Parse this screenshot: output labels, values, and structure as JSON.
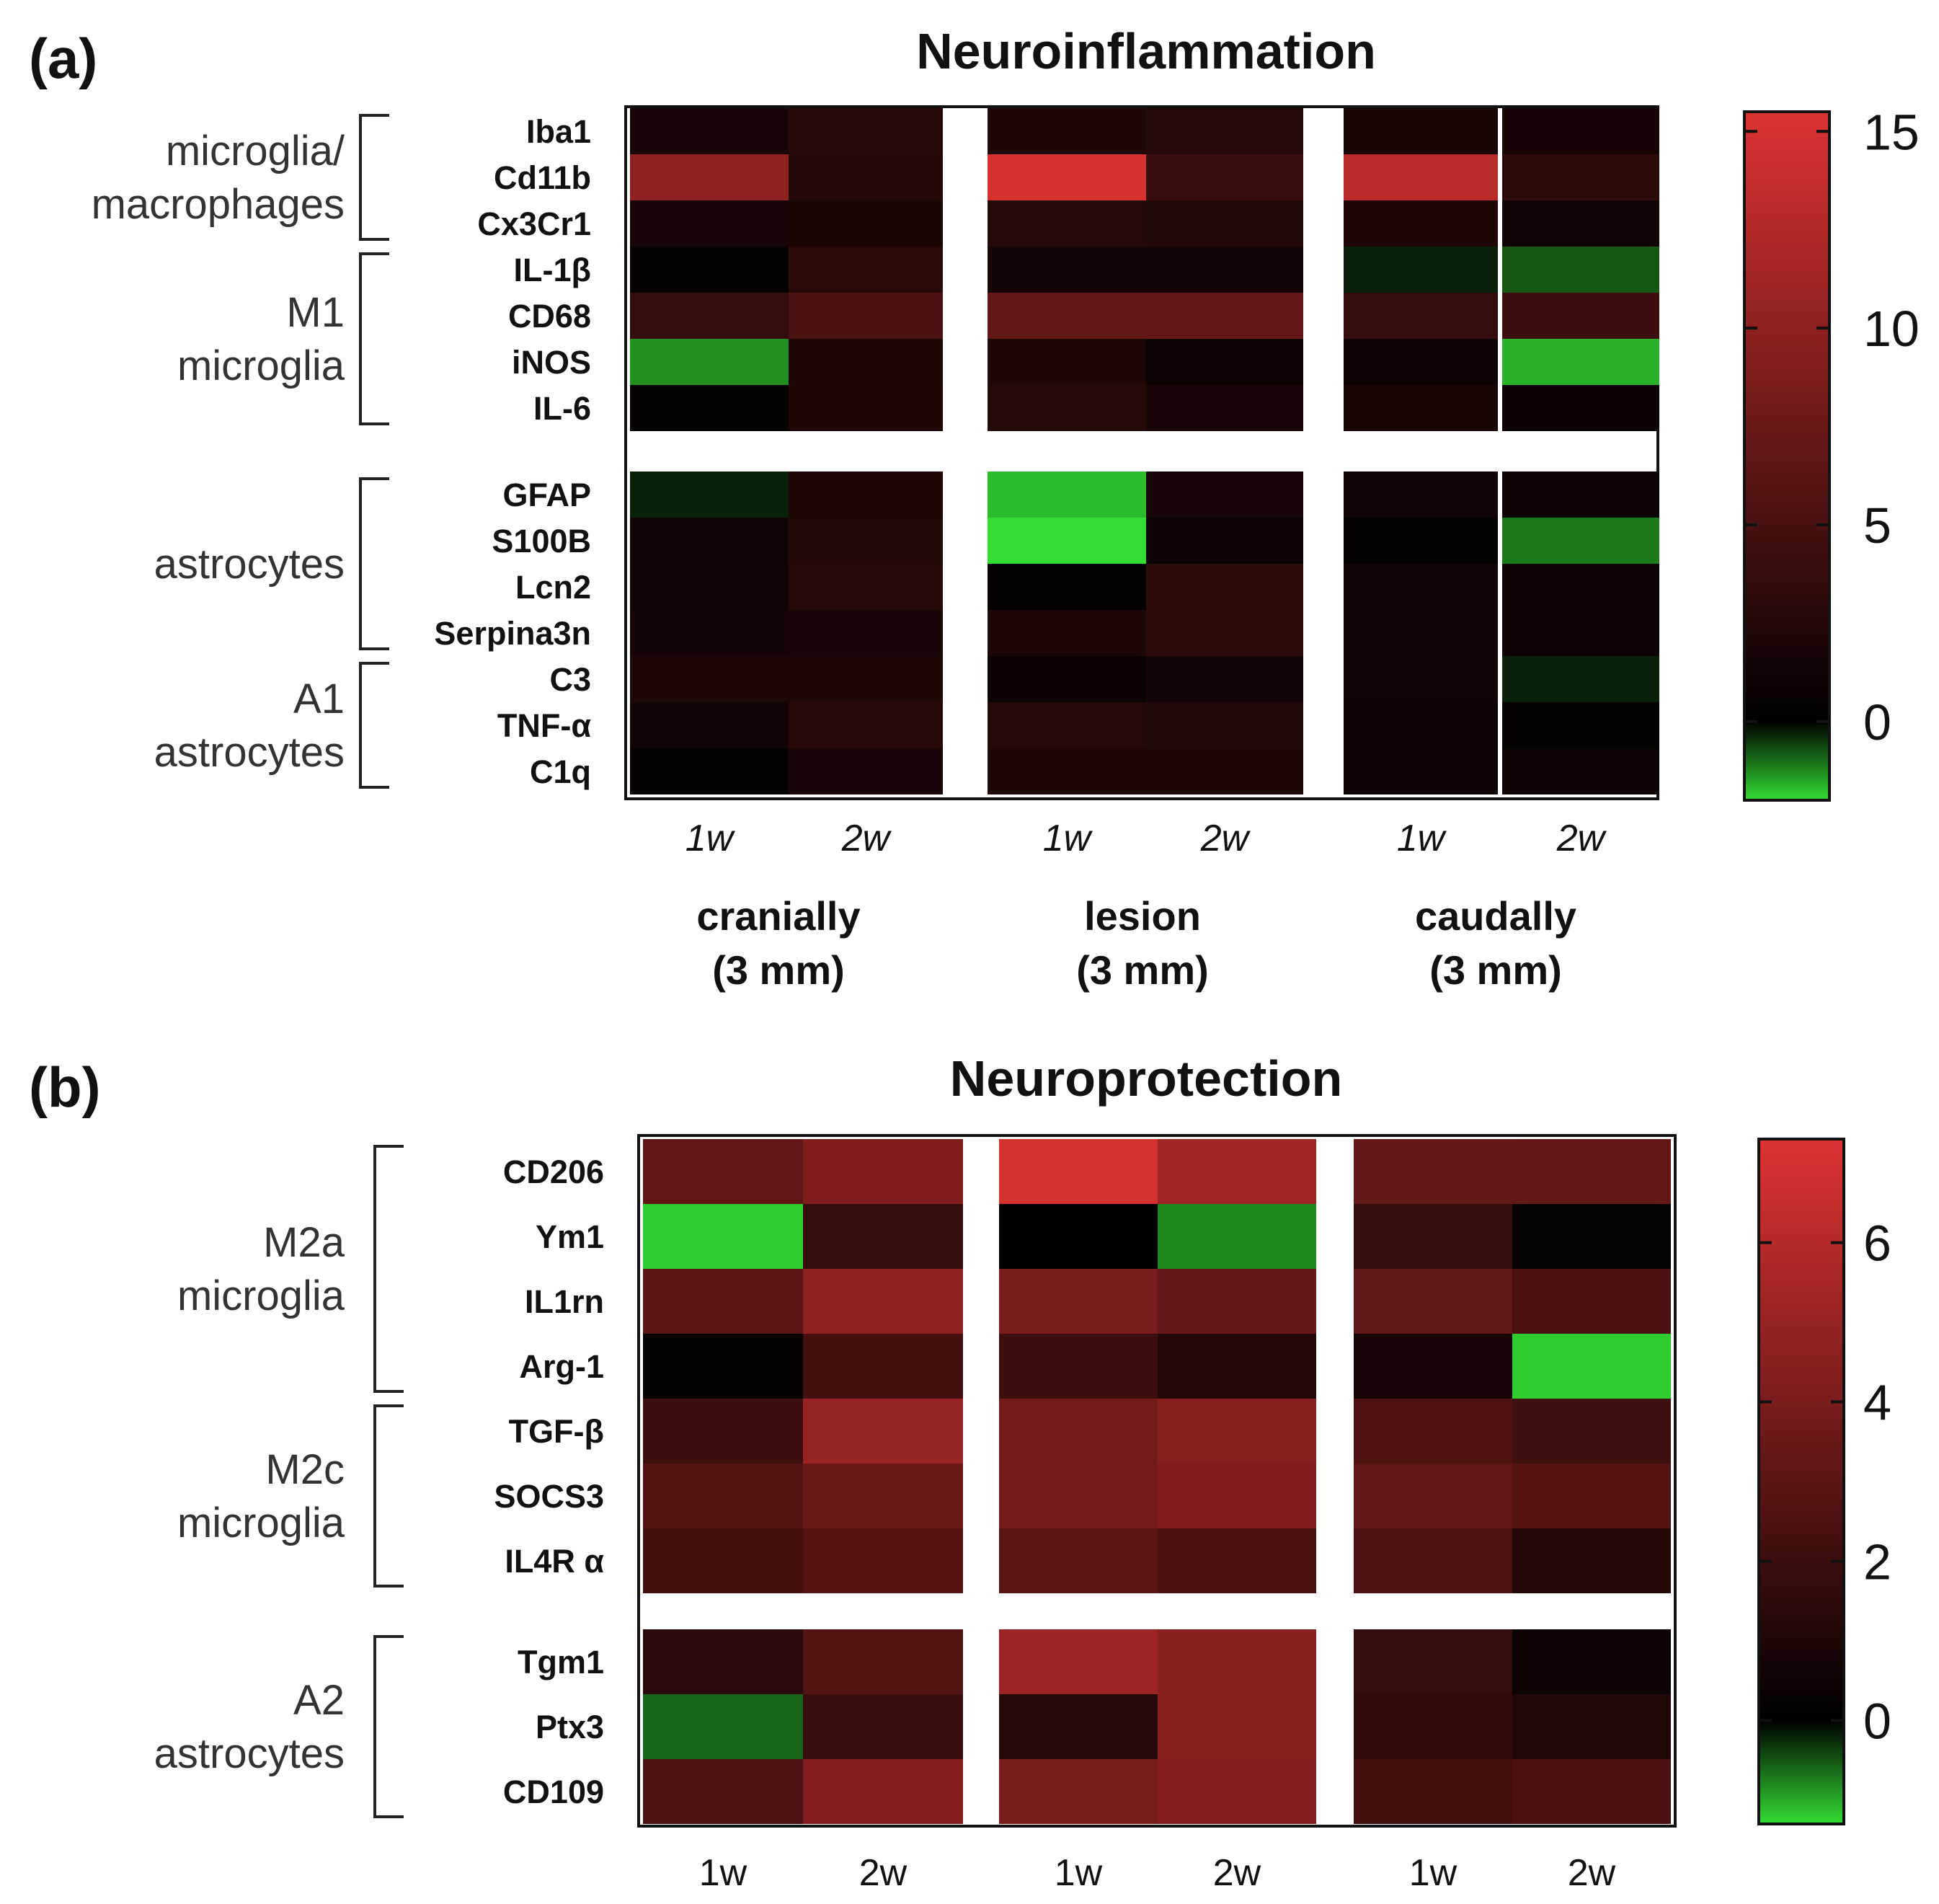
{
  "chart_data": [
    {
      "type": "heatmap",
      "panel_label": "(a)",
      "title": "Neuroinflammation",
      "columns": [
        {
          "location": "cranially",
          "distance": "(3 mm)",
          "timepoints": [
            "1w",
            "2w"
          ]
        },
        {
          "location": "lesion",
          "distance": "(3 mm)",
          "timepoints": [
            "1w",
            "2w"
          ]
        },
        {
          "location": "caudally",
          "distance": "(3 mm)",
          "timepoints": [
            "1w",
            "2w"
          ]
        }
      ],
      "row_blocks": [
        [
          "Iba1",
          "Cd11b",
          "Cx3Cr1",
          "IL-1β",
          "CD68",
          "iNOS",
          "IL-6"
        ],
        [
          "GFAP",
          "S100B",
          "Lcn2",
          "Serpina3n",
          "C3",
          "TNF-α",
          "C1q"
        ]
      ],
      "groups": [
        {
          "label": [
            "microglia/",
            "macrophages"
          ],
          "rows": [
            "Iba1",
            "Cx3Cr1"
          ]
        },
        {
          "label": [
            "M1",
            "microglia"
          ],
          "rows": [
            "IL-1β",
            "IL-6"
          ]
        },
        {
          "label": [
            "astrocytes"
          ],
          "rows": [
            "GFAP",
            "Serpina3n"
          ]
        },
        {
          "label": [
            "A1",
            "astrocytes"
          ],
          "rows": [
            "C3",
            "C1q"
          ]
        }
      ],
      "values": [
        [
          1.7,
          2.8,
          2.2,
          2.6,
          1.9,
          1.6
        ],
        [
          10.0,
          2.5,
          15.0,
          4.0,
          13.0,
          3.2
        ],
        [
          1.7,
          1.9,
          2.6,
          2.3,
          2.2,
          1.2
        ],
        [
          0.5,
          3.0,
          1.5,
          1.5,
          -0.3,
          -0.8
        ],
        [
          3.7,
          5.2,
          7.0,
          7.0,
          3.7,
          4.3
        ],
        [
          -1.3,
          2.0,
          2.2,
          1.0,
          1.0,
          -1.6
        ],
        [
          0.5,
          2.2,
          2.6,
          1.8,
          1.9,
          0.8
        ],
        [
          -0.3,
          2.2,
          -1.7,
          1.7,
          1.3,
          0.9
        ],
        [
          1.2,
          2.4,
          -2.8,
          0.9,
          0.4,
          -1.1
        ],
        [
          1.2,
          2.6,
          0.4,
          3.0,
          1.2,
          1.0
        ],
        [
          1.5,
          1.8,
          2.1,
          3.2,
          1.3,
          1.0
        ],
        [
          2.0,
          2.0,
          0.8,
          1.5,
          1.3,
          -0.3
        ],
        [
          1.4,
          2.8,
          2.6,
          2.4,
          0.9,
          0.5
        ],
        [
          0.5,
          1.7,
          2.1,
          2.0,
          1.0,
          1.0
        ]
      ],
      "colorbar": {
        "min": -2,
        "max": 15.5,
        "ticks": [
          15,
          10,
          5,
          0
        ]
      }
    },
    {
      "type": "heatmap",
      "panel_label": "(b)",
      "title": "Neuroprotection",
      "columns": [
        {
          "timepoints": [
            "1w",
            "2w"
          ]
        },
        {
          "timepoints": [
            "1w",
            "2w"
          ]
        },
        {
          "timepoints": [
            "1w",
            "2w"
          ]
        }
      ],
      "row_blocks": [
        [
          "CD206",
          "Ym1",
          "IL1rn",
          "Arg-1",
          "TGF-β",
          "SOCS3",
          "IL4R α"
        ],
        [
          "Tgm1",
          "Ptx3",
          "CD109"
        ]
      ],
      "groups": [
        {
          "label": [
            "M2a",
            "microglia"
          ],
          "rows": [
            "CD206",
            "Arg-1"
          ]
        },
        {
          "label": [
            "M2c",
            "microglia"
          ],
          "rows": [
            "TGF-β",
            "IL4R α"
          ]
        },
        {
          "label": [
            "A2",
            "astrocytes"
          ],
          "rows": [
            "Tgm1",
            "CD109"
          ]
        }
      ],
      "values": [
        [
          3.2,
          4.2,
          7.0,
          5.3,
          3.4,
          3.3
        ],
        [
          -1.2,
          1.8,
          0.0,
          -0.8,
          1.8,
          0.3
        ],
        [
          3.0,
          4.7,
          4.0,
          3.4,
          3.1,
          2.4
        ],
        [
          0.2,
          2.2,
          2.0,
          1.2,
          0.8,
          -1.2
        ],
        [
          2.0,
          5.0,
          3.8,
          4.5,
          2.6,
          2.1
        ],
        [
          2.7,
          3.5,
          3.8,
          4.2,
          3.2,
          2.8
        ],
        [
          2.2,
          2.8,
          3.0,
          2.4,
          2.5,
          1.2
        ],
        [
          1.4,
          2.7,
          5.2,
          4.6,
          1.8,
          0.4
        ],
        [
          -0.6,
          1.9,
          1.3,
          4.6,
          1.6,
          1.1
        ],
        [
          2.5,
          4.4,
          4.0,
          4.4,
          2.2,
          2.4
        ]
      ],
      "colorbar": {
        "min": -1.3,
        "max": 7.3,
        "ticks": [
          6,
          4,
          2,
          0
        ]
      }
    }
  ],
  "colors": {
    "low": "#33dd33",
    "zero": "#000000",
    "high": "#dd3333"
  }
}
